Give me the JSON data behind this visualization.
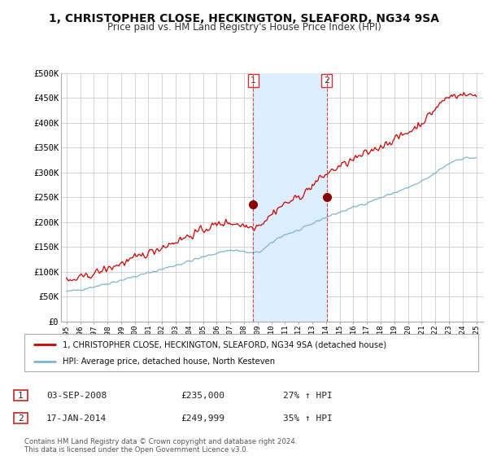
{
  "title": "1, CHRISTOPHER CLOSE, HECKINGTON, SLEAFORD, NG34 9SA",
  "subtitle": "Price paid vs. HM Land Registry's House Price Index (HPI)",
  "title_fontsize": 10,
  "subtitle_fontsize": 8.5,
  "ylim": [
    0,
    500000
  ],
  "yticks": [
    0,
    50000,
    100000,
    150000,
    200000,
    250000,
    300000,
    350000,
    400000,
    450000,
    500000
  ],
  "ytick_labels": [
    "£0",
    "£50K",
    "£100K",
    "£150K",
    "£200K",
    "£250K",
    "£300K",
    "£350K",
    "£400K",
    "£450K",
    "£500K"
  ],
  "hpi_color": "#7fb3d3",
  "price_color": "#cc0000",
  "transaction1_date": 2008.67,
  "transaction1_price": 235000,
  "transaction2_date": 2014.04,
  "transaction2_price": 249999,
  "legend_line1": "1, CHRISTOPHER CLOSE, HECKINGTON, SLEAFORD, NG34 9SA (detached house)",
  "legend_line2": "HPI: Average price, detached house, North Kesteven",
  "table_row1_num": "1",
  "table_row1_date": "03-SEP-2008",
  "table_row1_price": "£235,000",
  "table_row1_hpi": "27% ↑ HPI",
  "table_row2_num": "2",
  "table_row2_date": "17-JAN-2014",
  "table_row2_price": "£249,999",
  "table_row2_hpi": "35% ↑ HPI",
  "footnote": "Contains HM Land Registry data © Crown copyright and database right 2024.\nThis data is licensed under the Open Government Licence v3.0.",
  "background_color": "#ffffff",
  "grid_color": "#cccccc",
  "vline_color": "#dd4444",
  "span_color": "#ddeeff"
}
